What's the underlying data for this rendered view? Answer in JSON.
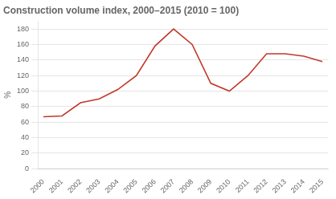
{
  "chart_data": {
    "type": "line",
    "title": "Construction volume index, 2000–2015 (2010 = 100)",
    "ylabel": "%",
    "x": [
      2000,
      2001,
      2002,
      2003,
      2004,
      2005,
      2006,
      2007,
      2008,
      2009,
      2010,
      2011,
      2012,
      2013,
      2014,
      2015
    ],
    "values": [
      67,
      68,
      85,
      90,
      102,
      120,
      158,
      180,
      160,
      110,
      100,
      120,
      148,
      148,
      145,
      138
    ],
    "color": "#c0392b",
    "xlim": [
      1999.7,
      2015.3
    ],
    "xticks": [
      2000,
      2001,
      2002,
      2003,
      2004,
      2005,
      2006,
      2007,
      2008,
      2009,
      2010,
      2011,
      2012,
      2013,
      2014,
      2015
    ],
    "ylim": [
      0,
      190
    ],
    "yticks": [
      0,
      20,
      40,
      60,
      80,
      100,
      120,
      140,
      160,
      180
    ],
    "grid": "y",
    "legend": false
  }
}
